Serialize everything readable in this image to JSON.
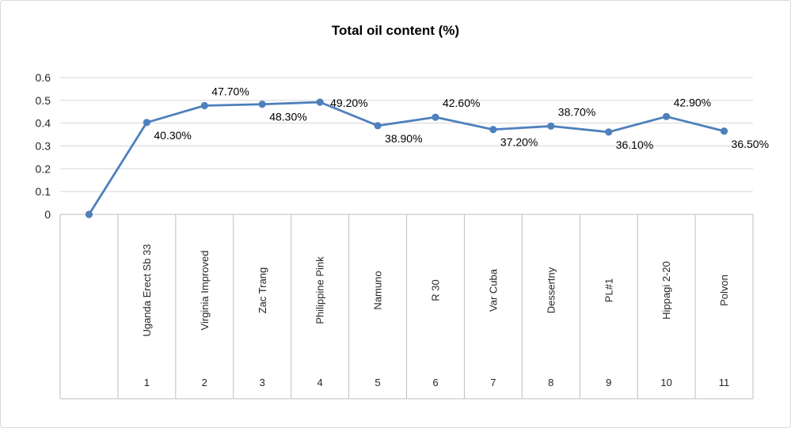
{
  "chart_data": {
    "type": "line",
    "title": "Total oil content (%)",
    "xlabel": "",
    "ylabel": "",
    "ylim": [
      0,
      0.6
    ],
    "y_ticks": [
      0,
      0.1,
      0.2,
      0.3,
      0.4,
      0.5,
      0.6
    ],
    "grid": true,
    "legend": "none",
    "line_color": "#4e80bc",
    "marker_color": "#4e80bc",
    "grid_color": "#d6d6d6",
    "axis_color": "#bfbfbf",
    "text_color": "#262626",
    "categories": [
      "",
      "Uganda Erect Sb 33",
      "Virginia Improved",
      "Zac Trang",
      "Philippine Pink",
      "Namuno",
      "R 30",
      "Var Cuba",
      "Dessertny",
      "PL#1",
      "Hippagi 2-20",
      "Polvon"
    ],
    "category_numbers": [
      "",
      "1",
      "2",
      "3",
      "4",
      "5",
      "6",
      "7",
      "8",
      "9",
      "10",
      "11"
    ],
    "values": [
      0,
      0.403,
      0.477,
      0.483,
      0.492,
      0.389,
      0.426,
      0.372,
      0.387,
      0.361,
      0.429,
      0.365
    ],
    "points": [
      {
        "category": "",
        "number": "",
        "value": 0,
        "label": "",
        "label_placement": "none"
      },
      {
        "category": "Uganda Erect Sb 33",
        "number": "1",
        "value": 0.403,
        "label": "40.30%",
        "label_placement": "below"
      },
      {
        "category": "Virginia Improved",
        "number": "2",
        "value": 0.477,
        "label": "47.70%",
        "label_placement": "above"
      },
      {
        "category": "Zac Trang",
        "number": "3",
        "value": 0.483,
        "label": "48.30%",
        "label_placement": "below"
      },
      {
        "category": "Philippine Pink",
        "number": "4",
        "value": 0.492,
        "label": "49.20%",
        "label_placement": "right"
      },
      {
        "category": "Namuno",
        "number": "5",
        "value": 0.389,
        "label": "38.90%",
        "label_placement": "below"
      },
      {
        "category": "R 30",
        "number": "6",
        "value": 0.426,
        "label": "42.60%",
        "label_placement": "above"
      },
      {
        "category": "Var Cuba",
        "number": "7",
        "value": 0.372,
        "label": "37.20%",
        "label_placement": "below"
      },
      {
        "category": "Dessertny",
        "number": "8",
        "value": 0.387,
        "label": "38.70%",
        "label_placement": "above"
      },
      {
        "category": "PL#1",
        "number": "9",
        "value": 0.361,
        "label": "36.10%",
        "label_placement": "below"
      },
      {
        "category": "Hippagi 2-20",
        "number": "10",
        "value": 0.429,
        "label": "42.90%",
        "label_placement": "above"
      },
      {
        "category": "Polvon",
        "number": "11",
        "value": 0.365,
        "label": "36.50%",
        "label_placement": "below"
      }
    ]
  }
}
